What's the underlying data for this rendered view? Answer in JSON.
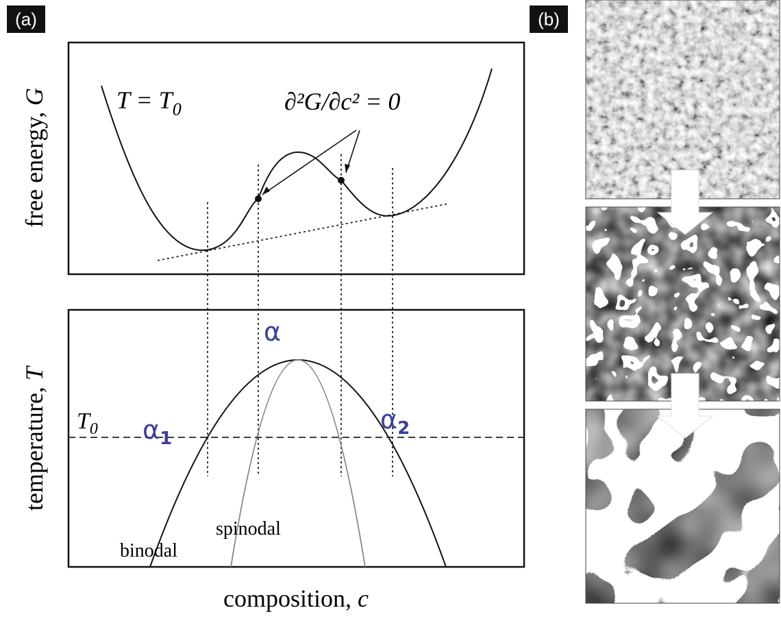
{
  "panel_a": {
    "tag": "(a)",
    "free_energy": {
      "title": {
        "text": "free energy,",
        "var": "G"
      },
      "condition": {
        "main": "T = T",
        "sub": "0"
      },
      "equation": "∂²G/∂c² = 0"
    },
    "phase_diagram": {
      "title": {
        "text": "temperature,",
        "var": "T"
      },
      "peak_label": "α",
      "t0_label": {
        "main": "T",
        "sub": "0"
      },
      "alpha1": {
        "main": "α",
        "sub": "1"
      },
      "alpha2": {
        "main": "α",
        "sub": "2"
      },
      "spinodal": "spinodal",
      "binodal": "binodal"
    },
    "x_title": {
      "text": "composition,",
      "var": "c"
    }
  },
  "panel_b": {
    "tag": "(b)"
  }
}
